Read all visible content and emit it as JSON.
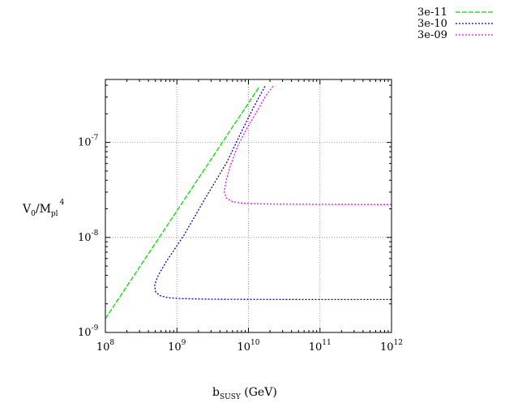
{
  "chart_data": {
    "type": "line",
    "x_scale": "log",
    "y_scale": "log",
    "xlim": [
      100000000.0,
      1000000000000.0
    ],
    "ylim": [
      1e-09,
      4.6e-07
    ],
    "grid": true,
    "legend_position": "top-right",
    "xlabel": {
      "base": "b",
      "sub": "SUSY",
      "rest": " (GeV)"
    },
    "ylabel": {
      "base": "V",
      "sub0": "0",
      "mid": "/M",
      "sub1": "pl",
      "sup": "4"
    },
    "x_ticks": [
      {
        "value": 100000000.0,
        "base": "10",
        "exp": "8"
      },
      {
        "value": 1000000000.0,
        "base": "10",
        "exp": "9"
      },
      {
        "value": 10000000000.0,
        "base": "10",
        "exp": "10"
      },
      {
        "value": 100000000000.0,
        "base": "10",
        "exp": "11"
      },
      {
        "value": 1000000000000.0,
        "base": "10",
        "exp": "12"
      }
    ],
    "y_ticks": [
      {
        "value": 1e-09,
        "base": "10",
        "exp": "-9"
      },
      {
        "value": 1e-08,
        "base": "10",
        "exp": "-8"
      },
      {
        "value": 1e-07,
        "base": "10",
        "exp": "-7"
      }
    ],
    "series": [
      {
        "name": "3e-11",
        "color": "#00dd00",
        "dash": "6,2",
        "points": [
          [
            100000000.0,
            1.4e-09
          ],
          [
            14000000000.0,
            3.8e-07
          ]
        ]
      },
      {
        "name": "3e-10",
        "color": "#0000cc",
        "dash": "2,2",
        "points": [
          [
            17000000000.0,
            3.9e-07
          ],
          [
            12000000000.0,
            2.4e-07
          ],
          [
            8000000000.0,
            1.3e-07
          ],
          [
            5000000000.0,
            6.2e-08
          ],
          [
            2500000000.0,
            2.6e-08
          ],
          [
            1250000000.0,
            1.05e-08
          ],
          [
            700000000.0,
            5.5e-09
          ],
          [
            550000000.0,
            4e-09
          ],
          [
            490000000.0,
            3.2e-09
          ],
          [
            500000000.0,
            2.7e-09
          ],
          [
            570000000.0,
            2.45e-09
          ],
          [
            750000000.0,
            2.32e-09
          ],
          [
            1200000000.0,
            2.27e-09
          ],
          [
            3000000000.0,
            2.24e-09
          ],
          [
            10000000000.0,
            2.23e-09
          ],
          [
            100000000000.0,
            2.22e-09
          ],
          [
            1000000000000.0,
            2.22e-09
          ]
        ]
      },
      {
        "name": "3e-09",
        "color": "#ff00ff",
        "dash": "2,2",
        "points": [
          [
            22000000000.0,
            3.9e-07
          ],
          [
            17000000000.0,
            3e-07
          ],
          [
            13000000000.0,
            2.1e-07
          ],
          [
            9500000000.0,
            1.4e-07
          ],
          [
            7000000000.0,
            9e-08
          ],
          [
            5500000000.0,
            5.5e-08
          ],
          [
            4800000000.0,
            3.8e-08
          ],
          [
            4600000000.0,
            3e-08
          ],
          [
            4900000000.0,
            2.6e-08
          ],
          [
            6000000000.0,
            2.38e-08
          ],
          [
            9000000000.0,
            2.28e-08
          ],
          [
            20000000000.0,
            2.25e-08
          ],
          [
            100000000000.0,
            2.23e-08
          ],
          [
            1000000000000.0,
            2.22e-08
          ]
        ]
      }
    ]
  }
}
